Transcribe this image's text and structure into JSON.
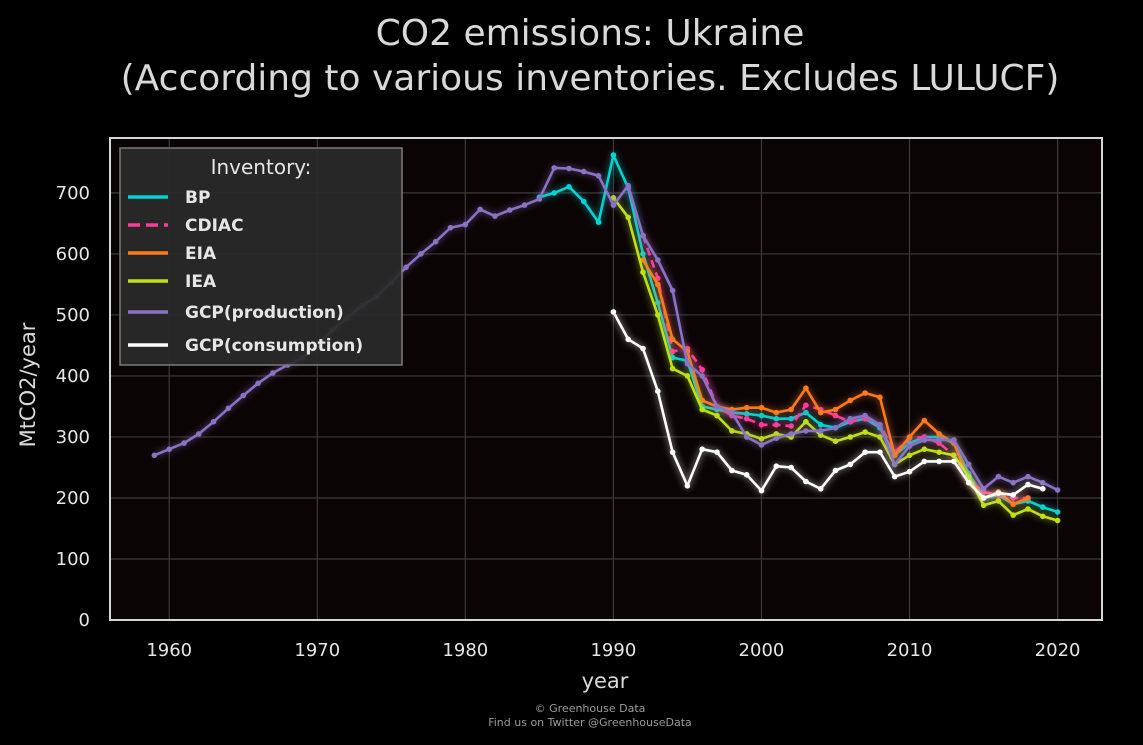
{
  "chart_data": {
    "type": "line",
    "title_line1": "CO2 emissions: Ukraine",
    "title_line2": "(According to various inventories. Excludes LULUCF)",
    "xlabel": "year",
    "ylabel": "MtCO2/year",
    "xlim": [
      1956,
      2023
    ],
    "ylim": [
      0,
      790
    ],
    "xticks": [
      1960,
      1970,
      1980,
      1990,
      2000,
      2010,
      2020
    ],
    "yticks": [
      0,
      100,
      200,
      300,
      400,
      500,
      600,
      700
    ],
    "grid": true,
    "legend": {
      "title": "Inventory:",
      "placement": "top-left"
    },
    "colors": {
      "background": "#000000",
      "plot_background": "#0b0405",
      "grid": "#3a3a3a",
      "frame": "#d6d6d6",
      "text": "#d9d9d9"
    },
    "series": [
      {
        "name": "BP",
        "color": "#00d4d4",
        "dash": false,
        "x": [
          1985,
          1986,
          1987,
          1988,
          1989,
          1990,
          1991,
          1992,
          1993,
          1994,
          1995,
          1996,
          1997,
          1998,
          1999,
          2000,
          2001,
          2002,
          2003,
          2004,
          2005,
          2006,
          2007,
          2008,
          2009,
          2010,
          2011,
          2012,
          2013,
          2014,
          2015,
          2016,
          2017,
          2018,
          2019,
          2020
        ],
        "y": [
          693,
          700,
          710,
          686,
          652,
          762,
          708,
          600,
          520,
          430,
          425,
          350,
          345,
          340,
          338,
          335,
          330,
          330,
          340,
          320,
          315,
          325,
          330,
          315,
          270,
          290,
          300,
          300,
          290,
          240,
          200,
          205,
          190,
          195,
          185,
          177
        ]
      },
      {
        "name": "CDIAC",
        "color": "#ff3c9a",
        "dash": true,
        "x": [
          1992,
          1993,
          1994,
          1995,
          1996,
          1997,
          1998,
          1999,
          2000,
          2001,
          2002,
          2003,
          2004,
          2005,
          2006,
          2007,
          2008,
          2009,
          2010,
          2011,
          2012,
          2013,
          2014,
          2015,
          2016,
          2017,
          2018
        ],
        "y": [
          630,
          560,
          440,
          445,
          410,
          350,
          335,
          330,
          320,
          320,
          318,
          352,
          345,
          335,
          325,
          330,
          320,
          275,
          298,
          300,
          290,
          270,
          230,
          210,
          205,
          200,
          200
        ]
      },
      {
        "name": "EIA",
        "color": "#ff7a1a",
        "dash": false,
        "x": [
          1992,
          1993,
          1994,
          1995,
          1996,
          1997,
          1998,
          1999,
          2000,
          2001,
          2002,
          2003,
          2004,
          2005,
          2006,
          2007,
          2008,
          2009,
          2010,
          2011,
          2012,
          2013,
          2014,
          2015,
          2016,
          2017,
          2018
        ],
        "y": [
          590,
          550,
          460,
          440,
          360,
          350,
          345,
          348,
          348,
          340,
          345,
          380,
          340,
          345,
          360,
          372,
          365,
          270,
          300,
          327,
          305,
          290,
          230,
          200,
          210,
          190,
          200
        ]
      },
      {
        "name": "IEA",
        "color": "#bfe015",
        "dash": false,
        "x": [
          1990,
          1991,
          1992,
          1993,
          1994,
          1995,
          1996,
          1997,
          1998,
          1999,
          2000,
          2001,
          2002,
          2003,
          2004,
          2005,
          2006,
          2007,
          2008,
          2009,
          2010,
          2011,
          2012,
          2013,
          2014,
          2015,
          2016,
          2017,
          2018,
          2019,
          2020
        ],
        "y": [
          692,
          660,
          570,
          500,
          412,
          400,
          345,
          335,
          310,
          305,
          297,
          305,
          300,
          325,
          303,
          293,
          300,
          308,
          300,
          255,
          270,
          280,
          275,
          270,
          235,
          188,
          195,
          172,
          182,
          170,
          163
        ]
      },
      {
        "name": "GCP(production)",
        "color": "#8a72c4",
        "dash": false,
        "x": [
          1959,
          1960,
          1961,
          1962,
          1963,
          1964,
          1965,
          1966,
          1967,
          1968,
          1969,
          1970,
          1971,
          1972,
          1973,
          1974,
          1975,
          1976,
          1977,
          1978,
          1979,
          1980,
          1981,
          1982,
          1983,
          1984,
          1985,
          1986,
          1987,
          1988,
          1989,
          1990,
          1991,
          1992,
          1993,
          1994,
          1995,
          1996,
          1997,
          1998,
          1999,
          2000,
          2001,
          2002,
          2003,
          2004,
          2005,
          2006,
          2007,
          2008,
          2009,
          2010,
          2011,
          2012,
          2013,
          2014,
          2015,
          2016,
          2017,
          2018,
          2019,
          2020
        ],
        "y": [
          270,
          280,
          290,
          305,
          325,
          347,
          368,
          388,
          405,
          418,
          430,
          450,
          475,
          495,
          515,
          530,
          553,
          578,
          600,
          620,
          643,
          648,
          673,
          662,
          672,
          680,
          690,
          741,
          740,
          735,
          728,
          680,
          712,
          630,
          590,
          540,
          420,
          400,
          350,
          340,
          300,
          287,
          298,
          305,
          310,
          310,
          315,
          330,
          335,
          320,
          255,
          285,
          295,
          295,
          295,
          255,
          215,
          235,
          225,
          235,
          225,
          213
        ]
      },
      {
        "name": "GCP(consumption)",
        "color": "#ffffff",
        "dash": false,
        "x": [
          1990,
          1991,
          1992,
          1993,
          1994,
          1995,
          1996,
          1997,
          1998,
          1999,
          2000,
          2001,
          2002,
          2003,
          2004,
          2005,
          2006,
          2007,
          2008,
          2009,
          2010,
          2011,
          2012,
          2013,
          2014,
          2015,
          2016,
          2017,
          2018,
          2019
        ],
        "y": [
          505,
          460,
          445,
          375,
          275,
          220,
          280,
          275,
          245,
          238,
          212,
          252,
          250,
          227,
          215,
          245,
          255,
          275,
          275,
          235,
          243,
          260,
          260,
          260,
          225,
          200,
          208,
          205,
          222,
          215
        ]
      }
    ]
  },
  "credits": {
    "line1": "© Greenhouse Data",
    "line2": "Find us on Twitter @GreenhouseData"
  }
}
